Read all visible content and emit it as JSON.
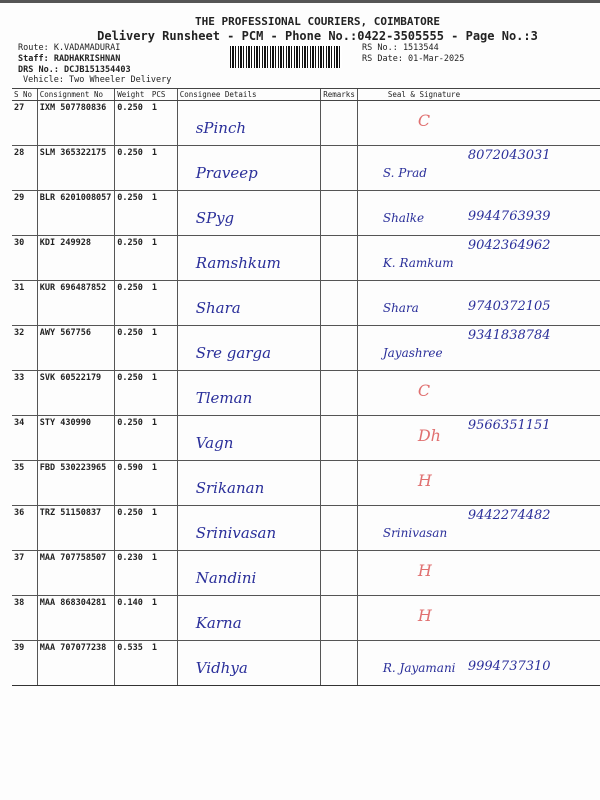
{
  "header": {
    "company": "THE PROFESSIONAL COURIERS, COIMBATORE",
    "subtitle": "Delivery Runsheet - PCM - Phone No.:0422-3505555 - Page No.:3",
    "route": "Route: K.VADAMADURAI",
    "staff": "Staff: RADHAKRISHNAN",
    "drs": "DRS No.: DCJB151354403",
    "vehicle": "Vehicle: Two Wheeler Delivery",
    "rs_no": "RS No.: 1513544",
    "rs_date": "RS Date: 01-Mar-2025"
  },
  "table": {
    "columns": [
      "S No",
      "Consignment No",
      "Weight",
      "PCS",
      "Consignee Details",
      "Remarks",
      "Seal & Signature"
    ],
    "rows": [
      {
        "sno": "27",
        "cn": "IXM 507780836",
        "wt": "0.250",
        "pcs": "1",
        "consignee": "sPinch",
        "phone": "",
        "sign": "C"
      },
      {
        "sno": "28",
        "cn": "SLM 365322175",
        "wt": "0.250",
        "pcs": "1",
        "consignee": "Praveep",
        "phone": "8072043031",
        "sign": "S. Prad"
      },
      {
        "sno": "29",
        "cn": "BLR 6201008057",
        "wt": "0.250",
        "pcs": "1",
        "consignee": "SPyg",
        "phone": "9944763939",
        "sign": "Shalke"
      },
      {
        "sno": "30",
        "cn": "KDI 249928",
        "wt": "0.250",
        "pcs": "1",
        "consignee": "Ramshkum",
        "phone": "9042364962",
        "sign": "K. Ramkum"
      },
      {
        "sno": "31",
        "cn": "KUR 696487852",
        "wt": "0.250",
        "pcs": "1",
        "consignee": "Shara",
        "phone": "9740372105",
        "sign": "Shara"
      },
      {
        "sno": "32",
        "cn": "AWY 567756",
        "wt": "0.250",
        "pcs": "1",
        "consignee": "Sre garga",
        "phone": "9341838784",
        "sign": "Jayashree"
      },
      {
        "sno": "33",
        "cn": "SVK 60522179",
        "wt": "0.250",
        "pcs": "1",
        "consignee": "Tleman",
        "phone": "",
        "sign": "C"
      },
      {
        "sno": "34",
        "cn": "STY 430990",
        "wt": "0.250",
        "pcs": "1",
        "consignee": "Vagn",
        "phone": "9566351151",
        "sign": "Dh"
      },
      {
        "sno": "35",
        "cn": "FBD 530223965",
        "wt": "0.590",
        "pcs": "1",
        "consignee": "Srikanan",
        "phone": "",
        "sign": "H"
      },
      {
        "sno": "36",
        "cn": "TRZ 51150837",
        "wt": "0.250",
        "pcs": "1",
        "consignee": "Srinivasan",
        "phone": "9442274482",
        "sign": "Srinivasan"
      },
      {
        "sno": "37",
        "cn": "MAA 707758507",
        "wt": "0.230",
        "pcs": "1",
        "consignee": "Nandini",
        "phone": "",
        "sign": "H"
      },
      {
        "sno": "38",
        "cn": "MAA 868304281",
        "wt": "0.140",
        "pcs": "1",
        "consignee": "Karna",
        "phone": "",
        "sign": "H"
      },
      {
        "sno": "39",
        "cn": "MAA 707077238",
        "wt": "0.535",
        "pcs": "1",
        "consignee": "Vidhya",
        "phone": "9994737310",
        "sign": "R. Jayamani"
      }
    ]
  }
}
